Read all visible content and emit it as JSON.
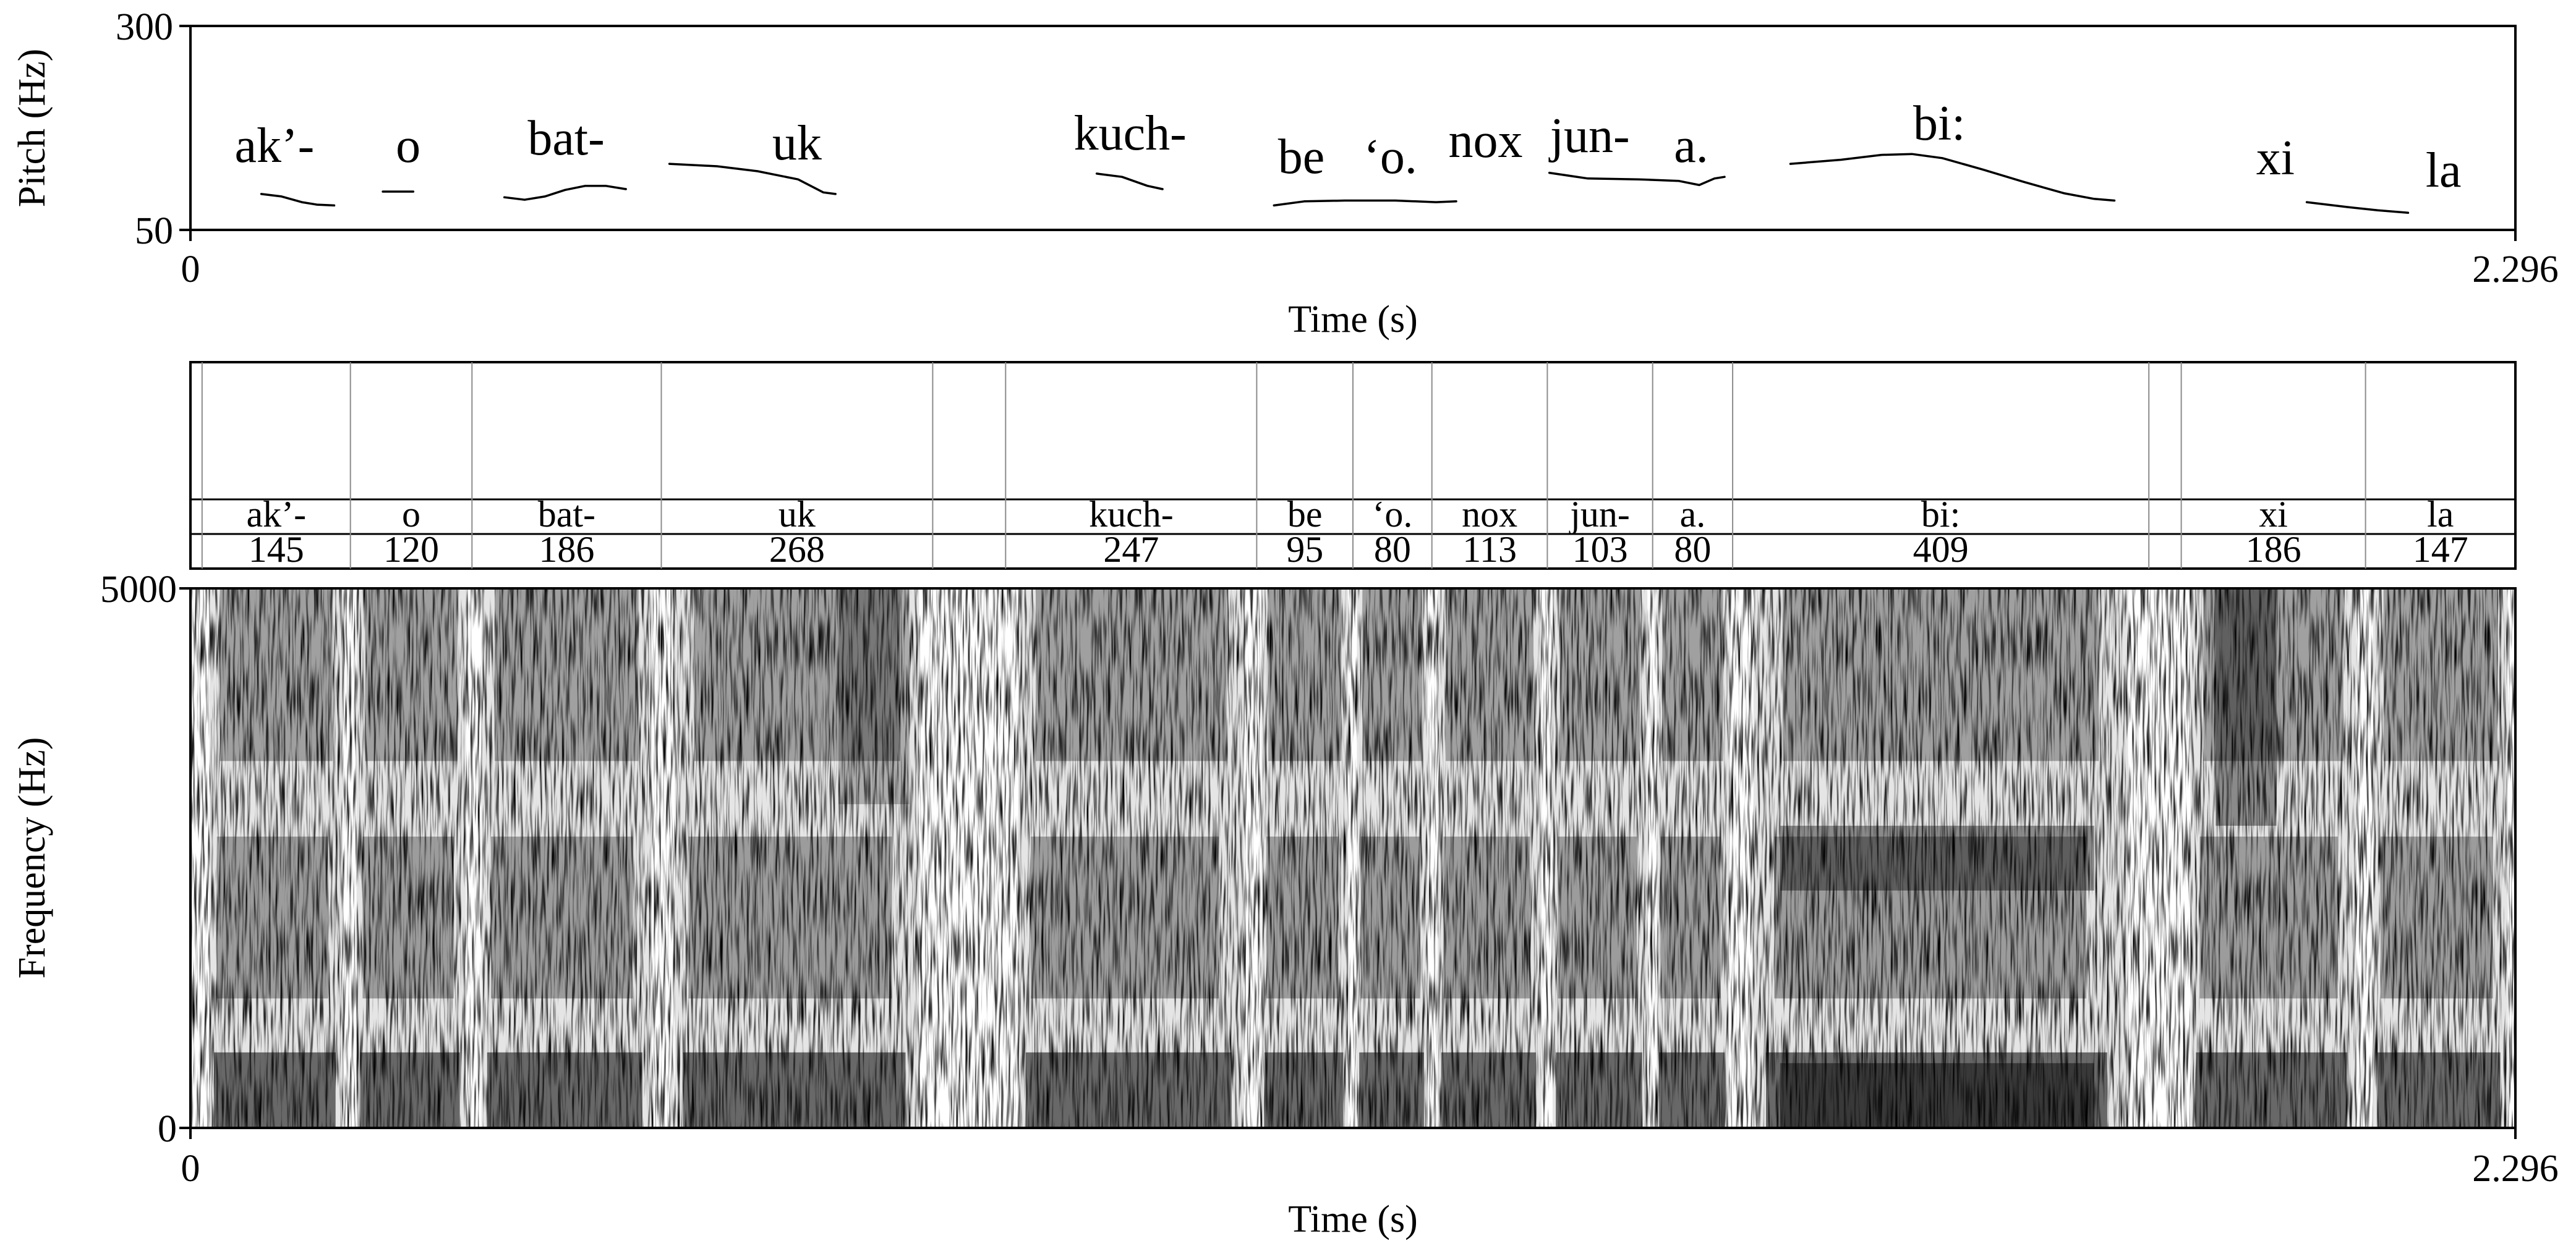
{
  "chart_data": [
    {
      "type": "line",
      "name": "pitch-track",
      "ylabel": "Pitch (Hz)",
      "xlabel": "Time (s)",
      "xlim": [
        0,
        2.296
      ],
      "ylim": [
        50,
        300
      ],
      "x_ticks": [
        "0",
        "2.296"
      ],
      "y_ticks": [
        "300",
        "50"
      ],
      "word_labels": [
        {
          "text": "ak’-",
          "t": 0.083
        },
        {
          "text": "o",
          "t": 0.215
        },
        {
          "text": "bat-",
          "t": 0.371
        },
        {
          "text": "uk",
          "t": 0.599
        },
        {
          "text": "kuch-",
          "t": 0.928
        },
        {
          "text": "be",
          "t": 1.097
        },
        {
          "text": "‘o.",
          "t": 1.185
        },
        {
          "text": "nox",
          "t": 1.279
        },
        {
          "text": "jun-",
          "t": 1.382
        },
        {
          "text": "a.",
          "t": 1.482
        },
        {
          "text": "bi:",
          "t": 1.727
        },
        {
          "text": "xi",
          "t": 2.059
        },
        {
          "text": "la",
          "t": 2.225
        }
      ],
      "series": [
        {
          "points": [
            [
              0.07,
              94
            ],
            [
              0.09,
              91
            ],
            [
              0.11,
              84
            ],
            [
              0.125,
              81
            ],
            [
              0.142,
              80
            ]
          ]
        },
        {
          "points": [
            [
              0.19,
              97
            ],
            [
              0.22,
              97
            ]
          ]
        },
        {
          "points": [
            [
              0.31,
              90
            ],
            [
              0.33,
              87
            ],
            [
              0.35,
              91
            ],
            [
              0.37,
              99
            ],
            [
              0.39,
              104
            ],
            [
              0.41,
              104
            ],
            [
              0.43,
              100
            ]
          ]
        },
        {
          "points": [
            [
              0.473,
              131
            ],
            [
              0.52,
              128
            ],
            [
              0.56,
              122
            ],
            [
              0.6,
              112
            ],
            [
              0.625,
              96
            ],
            [
              0.637,
              94
            ]
          ]
        },
        {
          "points": [
            [
              0.895,
              119
            ],
            [
              0.92,
              115
            ],
            [
              0.945,
              104
            ],
            [
              0.96,
              100
            ]
          ]
        },
        {
          "points": [
            [
              1.07,
              80
            ],
            [
              1.1,
              85
            ],
            [
              1.14,
              86
            ],
            [
              1.19,
              86
            ],
            [
              1.23,
              84
            ],
            [
              1.25,
              85
            ]
          ]
        },
        {
          "points": [
            [
              1.342,
              120
            ],
            [
              1.38,
              113
            ],
            [
              1.43,
              112
            ],
            [
              1.47,
              110
            ],
            [
              1.49,
              105
            ],
            [
              1.505,
              113
            ],
            [
              1.515,
              115
            ]
          ]
        },
        {
          "points": [
            [
              1.58,
              131
            ],
            [
              1.63,
              136
            ],
            [
              1.67,
              142
            ],
            [
              1.7,
              143
            ],
            [
              1.73,
              138
            ],
            [
              1.77,
              124
            ],
            [
              1.81,
              109
            ],
            [
              1.85,
              95
            ],
            [
              1.88,
              88
            ],
            [
              1.9,
              86
            ]
          ]
        },
        {
          "points": [
            [
              2.09,
              84
            ],
            [
              2.13,
              78
            ],
            [
              2.16,
              74
            ],
            [
              2.19,
              71
            ]
          ]
        }
      ]
    },
    {
      "type": "table",
      "name": "segment-tiers",
      "xlim": [
        0,
        2.296
      ],
      "boundaries": [
        0.0115,
        0.158,
        0.278,
        0.465,
        0.733,
        0.805,
        1.053,
        1.148,
        1.226,
        1.34,
        1.444,
        1.523,
        1.934,
        1.966,
        2.148
      ],
      "intervals": [
        {
          "start": 0.0115,
          "end": 0.158,
          "label": "ak’-",
          "value": "145"
        },
        {
          "start": 0.158,
          "end": 0.278,
          "label": "o",
          "value": "120"
        },
        {
          "start": 0.278,
          "end": 0.465,
          "label": "bat-",
          "value": "186"
        },
        {
          "start": 0.465,
          "end": 0.733,
          "label": "uk",
          "value": "268"
        },
        {
          "start": 0.805,
          "end": 1.053,
          "label": "kuch-",
          "value": "247"
        },
        {
          "start": 1.053,
          "end": 1.148,
          "label": "be",
          "value": "95"
        },
        {
          "start": 1.148,
          "end": 1.226,
          "label": "‘o.",
          "value": "80"
        },
        {
          "start": 1.226,
          "end": 1.34,
          "label": "nox",
          "value": "113"
        },
        {
          "start": 1.34,
          "end": 1.444,
          "label": "jun-",
          "value": "103"
        },
        {
          "start": 1.444,
          "end": 1.523,
          "label": "a.",
          "value": "80"
        },
        {
          "start": 1.523,
          "end": 1.934,
          "label": "bi:",
          "value": "409"
        },
        {
          "start": 1.966,
          "end": 2.148,
          "label": "xi",
          "value": "186"
        },
        {
          "start": 2.148,
          "end": 2.296,
          "label": "la",
          "value": "147"
        }
      ]
    },
    {
      "type": "heatmap",
      "name": "spectrogram",
      "xlabel": "Time (s)",
      "ylabel": "Frequency (Hz)",
      "xlim": [
        0,
        2.296
      ],
      "ylim": [
        0,
        5000
      ],
      "x_ticks": [
        "0",
        "2.296"
      ],
      "y_ticks": [
        "5000",
        "0"
      ],
      "colormap": "grayscale, darker = more energy",
      "ink_color": "#000000",
      "background_color": "#ffffff"
    }
  ]
}
